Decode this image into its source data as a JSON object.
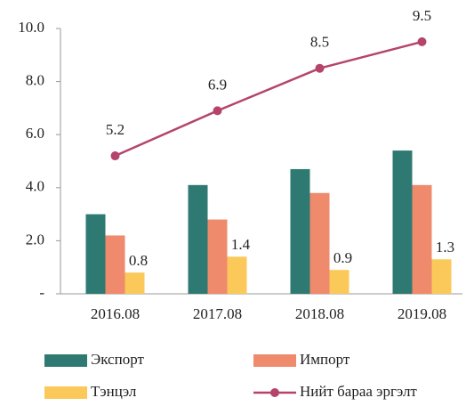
{
  "chart_data": {
    "type": "bar",
    "categories": [
      "2016.08",
      "2017.08",
      "2018.08",
      "2019.08"
    ],
    "series": [
      {
        "name": "Экспорт",
        "color": "#2e7a72",
        "values": [
          3.0,
          4.1,
          4.7,
          5.4
        ]
      },
      {
        "name": "Импорт",
        "color": "#ef8a6c",
        "values": [
          2.2,
          2.8,
          3.8,
          4.1
        ]
      },
      {
        "name": "Тэнцэл",
        "color": "#fbc85a",
        "values": [
          0.8,
          1.4,
          0.9,
          1.3
        ],
        "data_labels": true
      },
      {
        "name": "Нийт бараа эргэлт",
        "color": "#b5446c",
        "type": "line",
        "values": [
          5.2,
          6.9,
          8.5,
          9.5
        ],
        "data_labels": true
      }
    ],
    "ylim": [
      0,
      10
    ],
    "yticks": [
      {
        "value": 0,
        "label": "-"
      },
      {
        "value": 2,
        "label": "2.0"
      },
      {
        "value": 4,
        "label": "4.0"
      },
      {
        "value": 6,
        "label": "6.0"
      },
      {
        "value": 8,
        "label": "8.0"
      },
      {
        "value": 10,
        "label": "10.0"
      }
    ],
    "grid": false
  }
}
